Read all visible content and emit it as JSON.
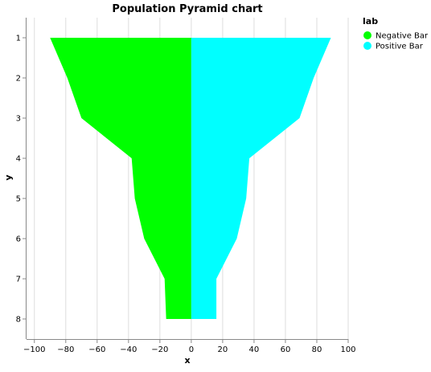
{
  "chart_data": {
    "type": "area",
    "title": "Population Pyramid chart",
    "xlabel": "x",
    "ylabel": "y",
    "xlim": [
      -105,
      100
    ],
    "x_ticks": [
      -100,
      -80,
      -60,
      -40,
      -20,
      0,
      20,
      40,
      60,
      80,
      100
    ],
    "x_tick_labels": [
      "−100",
      "−80",
      "−60",
      "−40",
      "−20",
      "0",
      "20",
      "40",
      "60",
      "80",
      "100"
    ],
    "y_categories": [
      "1",
      "2",
      "3",
      "4",
      "5",
      "6",
      "7",
      "8"
    ],
    "grid": true,
    "legend": {
      "title": "lab",
      "position": "top-right"
    },
    "series": [
      {
        "name": "Negative Bar",
        "color": "#00ff00",
        "values": [
          -90,
          -79,
          -70,
          -38,
          -36,
          -30,
          -17,
          -16
        ]
      },
      {
        "name": "Positive Bar",
        "color": "#00ffff",
        "values": [
          89,
          78,
          69,
          37,
          35,
          29,
          16,
          16
        ]
      }
    ]
  }
}
